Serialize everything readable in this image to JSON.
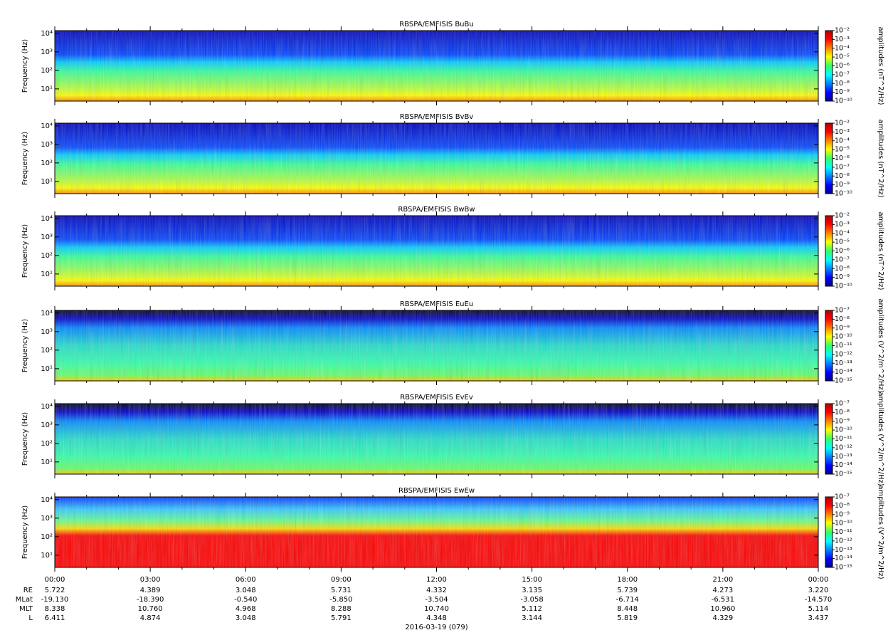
{
  "chart_data": [
    {
      "type": "spectrogram",
      "title": "RBSPA/EMFISIS  BuBu",
      "ylabel": "Frequency (Hz)",
      "log_y": true,
      "ylim": [
        2.2,
        14000
      ],
      "yticks": [
        {
          "value": 10,
          "label": "10¹"
        },
        {
          "value": 100,
          "label": "10²"
        },
        {
          "value": 1000,
          "label": "10³"
        },
        {
          "value": 10000,
          "label": "10⁴"
        }
      ],
      "colorbar_label": "amplitudes (nT^2/Hz)",
      "log_z": true,
      "zlim": [
        1e-10,
        0.01
      ],
      "zticks": [
        {
          "value": 0.01,
          "label": "10⁻²"
        },
        {
          "value": 0.001,
          "label": "10⁻³"
        },
        {
          "value": 0.0001,
          "label": "10⁻⁴"
        },
        {
          "value": 1e-05,
          "label": "10⁻⁵"
        },
        {
          "value": 1e-06,
          "label": "10⁻⁶"
        },
        {
          "value": 1e-07,
          "label": "10⁻⁷"
        },
        {
          "value": 1e-08,
          "label": "10⁻⁸"
        },
        {
          "value": 1e-09,
          "label": "10⁻⁹"
        },
        {
          "value": 1e-10,
          "label": "10⁻¹⁰"
        }
      ],
      "field": "B"
    },
    {
      "type": "spectrogram",
      "title": "RBSPA/EMFISIS  BvBv",
      "ylabel": "Frequency (Hz)",
      "log_y": true,
      "ylim": [
        2.2,
        14000
      ],
      "yticks": [
        {
          "value": 10,
          "label": "10¹"
        },
        {
          "value": 100,
          "label": "10²"
        },
        {
          "value": 1000,
          "label": "10³"
        },
        {
          "value": 10000,
          "label": "10⁴"
        }
      ],
      "colorbar_label": "amplitudes (nT^2/Hz)",
      "log_z": true,
      "zlim": [
        1e-10,
        0.01
      ],
      "zticks": [
        {
          "value": 0.01,
          "label": "10⁻²"
        },
        {
          "value": 0.001,
          "label": "10⁻³"
        },
        {
          "value": 0.0001,
          "label": "10⁻⁴"
        },
        {
          "value": 1e-05,
          "label": "10⁻⁵"
        },
        {
          "value": 1e-06,
          "label": "10⁻⁶"
        },
        {
          "value": 1e-07,
          "label": "10⁻⁷"
        },
        {
          "value": 1e-08,
          "label": "10⁻⁸"
        },
        {
          "value": 1e-09,
          "label": "10⁻⁹"
        },
        {
          "value": 1e-10,
          "label": "10⁻¹⁰"
        }
      ],
      "field": "B"
    },
    {
      "type": "spectrogram",
      "title": "RBSPA/EMFISIS  BwBw",
      "ylabel": "Frequency (Hz)",
      "log_y": true,
      "ylim": [
        2.2,
        14000
      ],
      "yticks": [
        {
          "value": 10,
          "label": "10¹"
        },
        {
          "value": 100,
          "label": "10²"
        },
        {
          "value": 1000,
          "label": "10³"
        },
        {
          "value": 10000,
          "label": "10⁴"
        }
      ],
      "colorbar_label": "amplitudes (nT^2/Hz)",
      "log_z": true,
      "zlim": [
        1e-10,
        0.01
      ],
      "zticks": [
        {
          "value": 0.01,
          "label": "10⁻²"
        },
        {
          "value": 0.001,
          "label": "10⁻³"
        },
        {
          "value": 0.0001,
          "label": "10⁻⁴"
        },
        {
          "value": 1e-05,
          "label": "10⁻⁵"
        },
        {
          "value": 1e-06,
          "label": "10⁻⁶"
        },
        {
          "value": 1e-07,
          "label": "10⁻⁷"
        },
        {
          "value": 1e-08,
          "label": "10⁻⁸"
        },
        {
          "value": 1e-09,
          "label": "10⁻⁹"
        },
        {
          "value": 1e-10,
          "label": "10⁻¹⁰"
        }
      ],
      "field": "B"
    },
    {
      "type": "spectrogram",
      "title": "RBSPA/EMFISIS  EuEu",
      "ylabel": "Frequency (Hz)",
      "log_y": true,
      "ylim": [
        2.2,
        14000
      ],
      "yticks": [
        {
          "value": 10,
          "label": "10¹"
        },
        {
          "value": 100,
          "label": "10²"
        },
        {
          "value": 1000,
          "label": "10³"
        },
        {
          "value": 10000,
          "label": "10⁴"
        }
      ],
      "colorbar_label": "amplitudes (V^2/m^2/Hz)",
      "log_z": true,
      "zlim": [
        1e-15,
        1e-07
      ],
      "zticks": [
        {
          "value": 1e-07,
          "label": "10⁻⁷"
        },
        {
          "value": 1e-08,
          "label": "10⁻⁸"
        },
        {
          "value": 1e-09,
          "label": "10⁻⁹"
        },
        {
          "value": 1e-10,
          "label": "10⁻¹⁰"
        },
        {
          "value": 1e-11,
          "label": "10⁻¹¹"
        },
        {
          "value": 1e-12,
          "label": "10⁻¹²"
        },
        {
          "value": 1e-13,
          "label": "10⁻¹³"
        },
        {
          "value": 1e-14,
          "label": "10⁻¹⁴"
        },
        {
          "value": 1e-15,
          "label": "10⁻¹⁵"
        }
      ],
      "field": "E"
    },
    {
      "type": "spectrogram",
      "title": "RBSPA/EMFISIS  EvEv",
      "ylabel": "Frequency (Hz)",
      "log_y": true,
      "ylim": [
        2.2,
        14000
      ],
      "yticks": [
        {
          "value": 10,
          "label": "10¹"
        },
        {
          "value": 100,
          "label": "10²"
        },
        {
          "value": 1000,
          "label": "10³"
        },
        {
          "value": 10000,
          "label": "10⁴"
        }
      ],
      "colorbar_label": "amplitudes (V^2/m^2/Hz)",
      "log_z": true,
      "zlim": [
        1e-15,
        1e-07
      ],
      "zticks": [
        {
          "value": 1e-07,
          "label": "10⁻⁷"
        },
        {
          "value": 1e-08,
          "label": "10⁻⁸"
        },
        {
          "value": 1e-09,
          "label": "10⁻⁹"
        },
        {
          "value": 1e-10,
          "label": "10⁻¹⁰"
        },
        {
          "value": 1e-11,
          "label": "10⁻¹¹"
        },
        {
          "value": 1e-12,
          "label": "10⁻¹²"
        },
        {
          "value": 1e-13,
          "label": "10⁻¹³"
        },
        {
          "value": 1e-14,
          "label": "10⁻¹⁴"
        },
        {
          "value": 1e-15,
          "label": "10⁻¹⁵"
        }
      ],
      "field": "E"
    },
    {
      "type": "spectrogram",
      "title": "RBSPA/EMFISIS  EwEw",
      "ylabel": "Frequency (Hz)",
      "log_y": true,
      "ylim": [
        2.2,
        14000
      ],
      "yticks": [
        {
          "value": 10,
          "label": "10¹"
        },
        {
          "value": 100,
          "label": "10²"
        },
        {
          "value": 1000,
          "label": "10³"
        },
        {
          "value": 10000,
          "label": "10⁴"
        }
      ],
      "colorbar_label": "amplitudes (V^2/m^2/Hz)",
      "log_z": true,
      "zlim": [
        1e-15,
        1e-07
      ],
      "zticks": [
        {
          "value": 1e-07,
          "label": "10⁻⁷"
        },
        {
          "value": 1e-08,
          "label": "10⁻⁸"
        },
        {
          "value": 1e-09,
          "label": "10⁻⁹"
        },
        {
          "value": 1e-10,
          "label": "10⁻¹⁰"
        },
        {
          "value": 1e-11,
          "label": "10⁻¹¹"
        },
        {
          "value": 1e-12,
          "label": "10⁻¹²"
        },
        {
          "value": 1e-13,
          "label": "10⁻¹³"
        },
        {
          "value": 1e-14,
          "label": "10⁻¹⁴"
        },
        {
          "value": 1e-15,
          "label": "10⁻¹⁵"
        }
      ],
      "field": "Ew"
    }
  ],
  "time_axis": {
    "xlim": [
      0,
      24
    ],
    "xticks": [
      {
        "value": 0,
        "label": "00:00"
      },
      {
        "value": 3,
        "label": "03:00"
      },
      {
        "value": 6,
        "label": "06:00"
      },
      {
        "value": 9,
        "label": "09:00"
      },
      {
        "value": 12,
        "label": "12:00"
      },
      {
        "value": 15,
        "label": "15:00"
      },
      {
        "value": 18,
        "label": "18:00"
      },
      {
        "value": 21,
        "label": "21:00"
      },
      {
        "value": 24,
        "label": "00:00"
      }
    ],
    "xminor": [
      1,
      2,
      4,
      5,
      7,
      8,
      10,
      11,
      13,
      14,
      16,
      17,
      19,
      20,
      22,
      23
    ],
    "date_label": "2016-03-19 (079)"
  },
  "ephemeris": [
    {
      "label": "RE",
      "values": [
        "5.722",
        "4.389",
        "3.048",
        "5.731",
        "4.332",
        "3.135",
        "5.739",
        "4.273",
        "3.220"
      ]
    },
    {
      "label": "MLat",
      "values": [
        "-19.130",
        "-18.390",
        "-0.540",
        "-5.850",
        "-3.504",
        "-3.058",
        "-6.714",
        "-6.531",
        "-14.570"
      ]
    },
    {
      "label": "MLT",
      "values": [
        "8.338",
        "10.760",
        "4.968",
        "8.288",
        "10.740",
        "5.112",
        "8.448",
        "10.960",
        "5.114"
      ]
    },
    {
      "label": "L",
      "values": [
        "6.411",
        "4.874",
        "3.048",
        "5.791",
        "4.348",
        "3.144",
        "5.819",
        "4.329",
        "3.437"
      ]
    }
  ]
}
